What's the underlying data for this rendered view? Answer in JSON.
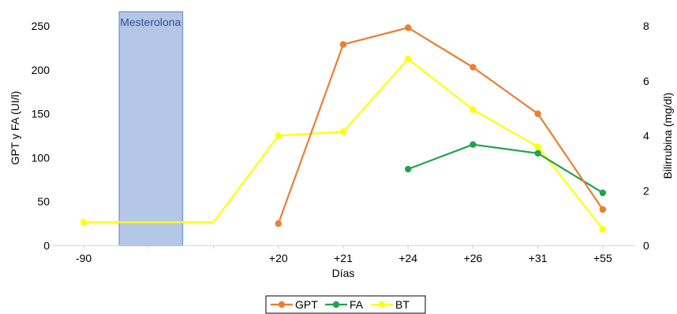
{
  "chart_data": {
    "type": "line",
    "categories": [
      "-90",
      "",
      "",
      "+20",
      "+21",
      "+24",
      "+26",
      "+31",
      "+55"
    ],
    "xlabel": "Días",
    "ylabel_left": "GPT y FA (UI/l)",
    "ylabel_right": "Bilirrubina (mg/dl)",
    "ylim_left": [
      0,
      250
    ],
    "yticks_left": [
      0,
      50,
      100,
      150,
      200,
      250
    ],
    "ylim_right": [
      0,
      8
    ],
    "yticks_right": [
      0,
      2,
      4,
      6,
      8
    ],
    "grid": false,
    "legend_position": "bottom",
    "annotation": {
      "label": "Mesterolona",
      "color": "#b4c7e7",
      "span_categories": [
        0.5,
        1.5
      ]
    },
    "series": [
      {
        "name": "GPT",
        "color": "#ed7d31",
        "axis": "left",
        "values": [
          null,
          null,
          null,
          25,
          229,
          248,
          203,
          150,
          41
        ]
      },
      {
        "name": "FA",
        "color": "#22a34a",
        "axis": "left",
        "values": [
          null,
          null,
          null,
          null,
          null,
          87,
          115,
          105,
          60
        ]
      },
      {
        "name": "BT",
        "color": "#ffff00",
        "axis": "right",
        "values": [
          0.85,
          0.85,
          0.85,
          4.0,
          4.15,
          6.8,
          4.95,
          3.6,
          0.6
        ],
        "line_only_indices": [
          1,
          2
        ]
      }
    ]
  }
}
